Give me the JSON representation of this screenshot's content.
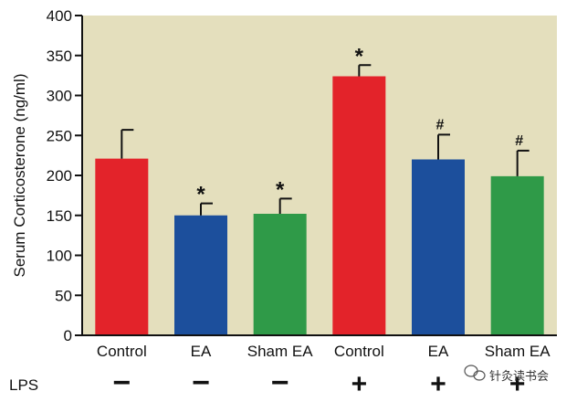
{
  "chart_data": {
    "type": "bar",
    "ylabel": "Serum Corticosterone (ng/ml)",
    "ylim": [
      0,
      400
    ],
    "yticks": [
      0,
      50,
      100,
      150,
      200,
      250,
      300,
      350,
      400
    ],
    "categories": [
      "Control",
      "EA",
      "Sham EA",
      "Control",
      "EA",
      "Sham EA"
    ],
    "values": [
      221,
      150,
      152,
      324,
      220,
      199
    ],
    "errors": [
      36,
      15,
      19,
      14,
      31,
      32
    ],
    "annotations": [
      "",
      "*",
      "*",
      "*",
      "#",
      "#"
    ],
    "lps_row_label": "LPS",
    "lps": [
      "−",
      "−",
      "−",
      "+",
      "+",
      "+"
    ],
    "grid": false
  },
  "colors": {
    "plot_background": "#e4dfbd",
    "bars": [
      "#e3232a",
      "#1c4f9c",
      "#2f9a48",
      "#e3232a",
      "#1c4f9c",
      "#2f9a48"
    ],
    "axis": "#111111"
  },
  "watermark": "针灸读书会",
  "watermark_icon": "wechat-icon"
}
